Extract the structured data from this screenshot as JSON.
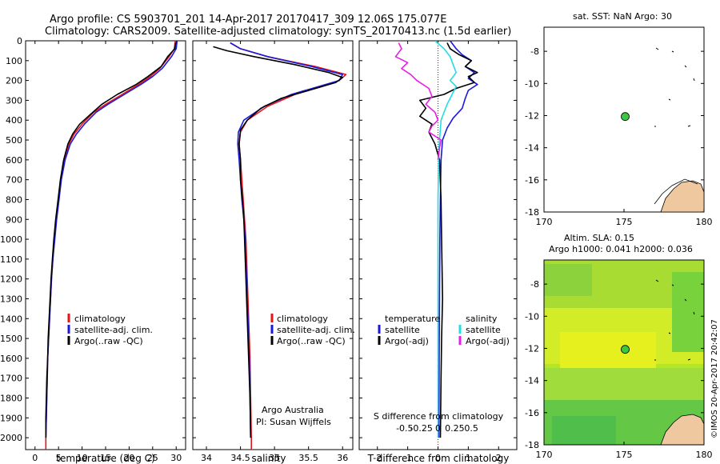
{
  "header": {
    "line1": "Argo profile: CS 5903701_201 14-Apr-2017 20170417_309 12.06S 175.077E",
    "line2": "Climatology: CARS2009. Satellite-adjusted climatology: synTS_20170413.nc (1.5d earlier)"
  },
  "colors": {
    "climatology": "#e8141a",
    "satellite": "#1a1adc",
    "argo": "#000000",
    "sal_satellite": "#22dde6",
    "sal_argo": "#e61ee6",
    "land": "#f0c8a0",
    "float_marker": "#3cc83c"
  },
  "chart_data": [
    {
      "type": "line",
      "name": "temperature-profile",
      "xlabel": "temperature (deg C)",
      "ylabel": "",
      "xlim": [
        -2,
        32
      ],
      "ylim": [
        2060,
        0
      ],
      "xticks": [
        0,
        5,
        10,
        15,
        20,
        25,
        30
      ],
      "yticks": [
        0,
        100,
        200,
        300,
        400,
        500,
        600,
        700,
        800,
        900,
        1000,
        1100,
        1200,
        1300,
        1400,
        1500,
        1600,
        1700,
        1800,
        1900,
        2000
      ],
      "legend": [
        "climatology",
        "satellite-adj. clim.",
        "Argo(..raw -QC)"
      ],
      "series": [
        {
          "name": "climatology",
          "color": "#e8141a",
          "points": [
            [
              29.8,
              0
            ],
            [
              29.6,
              40
            ],
            [
              28.5,
              80
            ],
            [
              26.5,
              140
            ],
            [
              24.5,
              180
            ],
            [
              22,
              220
            ],
            [
              18.5,
              270
            ],
            [
              15,
              320
            ],
            [
              12.5,
              360
            ],
            [
              10,
              420
            ],
            [
              8.3,
              470
            ],
            [
              7.2,
              520
            ],
            [
              6.2,
              600
            ],
            [
              5.5,
              700
            ],
            [
              5,
              800
            ],
            [
              4.5,
              900
            ],
            [
              4.1,
              1000
            ],
            [
              3.8,
              1100
            ],
            [
              3.5,
              1200
            ],
            [
              3.3,
              1300
            ],
            [
              3.1,
              1400
            ],
            [
              2.9,
              1500
            ],
            [
              2.7,
              1600
            ],
            [
              2.6,
              1700
            ],
            [
              2.5,
              1800
            ],
            [
              2.4,
              1900
            ],
            [
              2.3,
              2000
            ],
            [
              2.3,
              2060
            ]
          ]
        },
        {
          "name": "satellite",
          "color": "#1a1adc",
          "points": [
            [
              30.2,
              0
            ],
            [
              30,
              40
            ],
            [
              29,
              80
            ],
            [
              27,
              140
            ],
            [
              25,
              180
            ],
            [
              22.5,
              220
            ],
            [
              19,
              270
            ],
            [
              15.5,
              320
            ],
            [
              13,
              360
            ],
            [
              10.5,
              420
            ],
            [
              8.8,
              470
            ],
            [
              7.5,
              520
            ],
            [
              6.4,
              600
            ],
            [
              5.6,
              700
            ],
            [
              5.1,
              800
            ],
            [
              4.6,
              900
            ],
            [
              4.2,
              1000
            ],
            [
              3.8,
              1100
            ],
            [
              3.5,
              1200
            ],
            [
              3.3,
              1300
            ],
            [
              3.1,
              1400
            ],
            [
              2.9,
              1500
            ],
            [
              2.7,
              1600
            ],
            [
              2.6,
              1700
            ],
            [
              2.5,
              1800
            ],
            [
              2.4,
              1900
            ],
            [
              2.3,
              2000
            ]
          ]
        },
        {
          "name": "argo",
          "color": "#000000",
          "points": [
            [
              29.9,
              10
            ],
            [
              29.7,
              40
            ],
            [
              28.2,
              80
            ],
            [
              26.8,
              130
            ],
            [
              24,
              180
            ],
            [
              21.5,
              220
            ],
            [
              17.5,
              270
            ],
            [
              14.2,
              320
            ],
            [
              11.8,
              370
            ],
            [
              9.5,
              420
            ],
            [
              8,
              470
            ],
            [
              7,
              520
            ],
            [
              6.1,
              600
            ],
            [
              5.4,
              700
            ],
            [
              4.9,
              800
            ],
            [
              4.4,
              900
            ],
            [
              4,
              1000
            ],
            [
              3.7,
              1100
            ],
            [
              3.4,
              1200
            ],
            [
              3.2,
              1300
            ],
            [
              3,
              1400
            ],
            [
              2.8,
              1500
            ],
            [
              2.7,
              1600
            ],
            [
              2.5,
              1700
            ],
            [
              2.4,
              1800
            ],
            [
              2.3,
              1900
            ],
            [
              2.3,
              2000
            ]
          ]
        }
      ]
    },
    {
      "type": "line",
      "name": "salinity-profile",
      "xlabel": "salinity",
      "xlim": [
        33.8,
        36.15
      ],
      "ylim": [
        2060,
        0
      ],
      "xticks": [
        34,
        34.5,
        35,
        35.5,
        36
      ],
      "legend": [
        "climatology",
        "satellite-adj. clim.",
        "Argo(..raw -QC)"
      ],
      "annotation": [
        "Argo Australia",
        "PI: Susan Wijffels"
      ],
      "series": [
        {
          "name": "climatology",
          "color": "#e8141a",
          "points": [
            [
              34.35,
              10
            ],
            [
              34.5,
              40
            ],
            [
              34.9,
              80
            ],
            [
              35.6,
              130
            ],
            [
              36.05,
              170
            ],
            [
              35.95,
              200
            ],
            [
              35.7,
              230
            ],
            [
              35.3,
              270
            ],
            [
              34.9,
              330
            ],
            [
              34.6,
              400
            ],
            [
              34.5,
              460
            ],
            [
              34.48,
              520
            ],
            [
              34.5,
              600
            ],
            [
              34.52,
              700
            ],
            [
              34.54,
              800
            ],
            [
              34.56,
              900
            ],
            [
              34.58,
              1000
            ],
            [
              34.6,
              1200
            ],
            [
              34.62,
              1400
            ],
            [
              34.64,
              1600
            ],
            [
              34.65,
              1800
            ],
            [
              34.66,
              2000
            ],
            [
              34.66,
              2060
            ]
          ]
        },
        {
          "name": "satellite",
          "color": "#1a1adc",
          "points": [
            [
              34.35,
              10
            ],
            [
              34.5,
              40
            ],
            [
              34.9,
              80
            ],
            [
              35.55,
              130
            ],
            [
              36,
              170
            ],
            [
              35.95,
              200
            ],
            [
              35.65,
              230
            ],
            [
              35.25,
              270
            ],
            [
              34.85,
              330
            ],
            [
              34.55,
              400
            ],
            [
              34.47,
              460
            ],
            [
              34.46,
              520
            ],
            [
              34.48,
              600
            ],
            [
              34.5,
              700
            ],
            [
              34.52,
              800
            ],
            [
              34.55,
              900
            ],
            [
              34.57,
              1000
            ],
            [
              34.59,
              1200
            ],
            [
              34.61,
              1400
            ],
            [
              34.63,
              1600
            ],
            [
              34.64,
              1800
            ],
            [
              34.65,
              2000
            ]
          ]
        },
        {
          "name": "argo",
          "color": "#000000",
          "points": [
            [
              34.1,
              30
            ],
            [
              34.3,
              50
            ],
            [
              34.7,
              80
            ],
            [
              35.3,
              120
            ],
            [
              35.8,
              160
            ],
            [
              36,
              185
            ],
            [
              35.9,
              210
            ],
            [
              35.5,
              250
            ],
            [
              35.1,
              290
            ],
            [
              34.8,
              340
            ],
            [
              34.6,
              400
            ],
            [
              34.5,
              450
            ],
            [
              34.48,
              520
            ],
            [
              34.5,
              600
            ],
            [
              34.5,
              700
            ],
            [
              34.53,
              800
            ],
            [
              34.55,
              900
            ],
            [
              34.56,
              1000
            ],
            [
              34.58,
              1200
            ],
            [
              34.6,
              1400
            ],
            [
              34.62,
              1600
            ],
            [
              34.64,
              1800
            ],
            [
              34.65,
              2000
            ]
          ]
        }
      ]
    },
    {
      "type": "line",
      "name": "difference-profile",
      "xlabel": "T difference from climatology",
      "xlabel_top": "S difference from climatology",
      "xlim": [
        -2.6,
        2.6
      ],
      "ylim": [
        2060,
        0
      ],
      "xticks": [
        -2,
        -1,
        0,
        1,
        2
      ],
      "s_ticks": [
        "-0.5",
        "-0.25",
        "0",
        "0.25",
        "0.5"
      ],
      "s_tick_values": [
        -2,
        -1,
        0,
        1,
        2
      ],
      "legend_temperature": {
        "title": "temperature",
        "items": [
          "satellite",
          "Argo(-adj)"
        ]
      },
      "legend_salinity": {
        "title": "salinity",
        "items": [
          "satellite",
          "Argo(-adj)"
        ]
      },
      "series": [
        {
          "name": "T satellite",
          "color": "#1a1adc",
          "points": [
            [
              0.4,
              0
            ],
            [
              0.6,
              40
            ],
            [
              0.8,
              70
            ],
            [
              1.1,
              100
            ],
            [
              0.9,
              130
            ],
            [
              1.2,
              160
            ],
            [
              1.0,
              190
            ],
            [
              1.3,
              220
            ],
            [
              1.0,
              250
            ],
            [
              0.9,
              290
            ],
            [
              0.8,
              340
            ],
            [
              0.5,
              390
            ],
            [
              0.3,
              440
            ],
            [
              0.15,
              500
            ],
            [
              0.1,
              600
            ],
            [
              0.08,
              800
            ],
            [
              0.06,
              1000
            ],
            [
              0.05,
              1300
            ],
            [
              0.04,
              1600
            ],
            [
              0.03,
              2000
            ]
          ]
        },
        {
          "name": "T argo",
          "color": "#000000",
          "points": [
            [
              0.3,
              10
            ],
            [
              0.4,
              40
            ],
            [
              0.7,
              70
            ],
            [
              1.1,
              100
            ],
            [
              0.9,
              130
            ],
            [
              1.3,
              160
            ],
            [
              1.0,
              180
            ],
            [
              1.2,
              210
            ],
            [
              0.6,
              240
            ],
            [
              0.2,
              270
            ],
            [
              -0.6,
              300
            ],
            [
              -0.4,
              340
            ],
            [
              -0.6,
              380
            ],
            [
              -0.2,
              420
            ],
            [
              -0.3,
              460
            ],
            [
              -0.1,
              520
            ],
            [
              0.05,
              600
            ],
            [
              0.1,
              800
            ],
            [
              0.12,
              1000
            ],
            [
              0.15,
              1300
            ],
            [
              0.12,
              1500
            ],
            [
              0.1,
              1700
            ],
            [
              0.08,
              2000
            ]
          ]
        },
        {
          "name": "S satellite",
          "color": "#22dde6",
          "points": [
            [
              -0.1,
              0
            ],
            [
              0.2,
              40
            ],
            [
              0.4,
              80
            ],
            [
              0.5,
              120
            ],
            [
              0.6,
              160
            ],
            [
              0.4,
              200
            ],
            [
              0.6,
              230
            ],
            [
              0.5,
              260
            ],
            [
              0.3,
              320
            ],
            [
              0.1,
              400
            ],
            [
              0.05,
              500
            ],
            [
              0.02,
              600
            ],
            [
              0.0,
              800
            ],
            [
              0.0,
              1000
            ],
            [
              0.0,
              1400
            ],
            [
              0.0,
              2000
            ]
          ]
        },
        {
          "name": "S argo",
          "color": "#e61ee6",
          "points": [
            [
              -1.3,
              10
            ],
            [
              -1.2,
              40
            ],
            [
              -1.4,
              80
            ],
            [
              -1.0,
              110
            ],
            [
              -1.2,
              140
            ],
            [
              -0.9,
              170
            ],
            [
              -0.7,
              200
            ],
            [
              -0.3,
              240
            ],
            [
              -0.2,
              280
            ],
            [
              -0.4,
              320
            ],
            [
              -0.1,
              360
            ],
            [
              0.0,
              400
            ],
            [
              -0.2,
              430
            ],
            [
              -0.3,
              460
            ],
            [
              0.1,
              500
            ],
            [
              0.05,
              540
            ],
            [
              0.0,
              600
            ]
          ]
        }
      ]
    },
    {
      "type": "scatter",
      "name": "sst-map",
      "title": "sat. SST: NaN Argo: 30",
      "xlim": [
        170,
        180
      ],
      "ylim": [
        -18,
        -6.5
      ],
      "xticks": [
        170,
        175,
        180
      ],
      "yticks": [
        -18,
        -16,
        -14,
        -12,
        -10,
        -8
      ],
      "float_position": [
        175.077,
        -12.06
      ]
    },
    {
      "type": "heatmap",
      "name": "sla-map",
      "title_line1": "Altim. SLA: 0.15",
      "title_line2": "Argo h1000: 0.041 h2000: 0.036",
      "xlim": [
        170,
        180
      ],
      "ylim": [
        -18,
        -6.5
      ],
      "xticks": [
        170,
        175,
        180
      ],
      "yticks": [
        -18,
        -16,
        -14,
        -12,
        -10,
        -8
      ],
      "float_position": [
        175.077,
        -12.06
      ],
      "credit": "©IMOS 20-Apr-2017 20:42:07"
    }
  ]
}
